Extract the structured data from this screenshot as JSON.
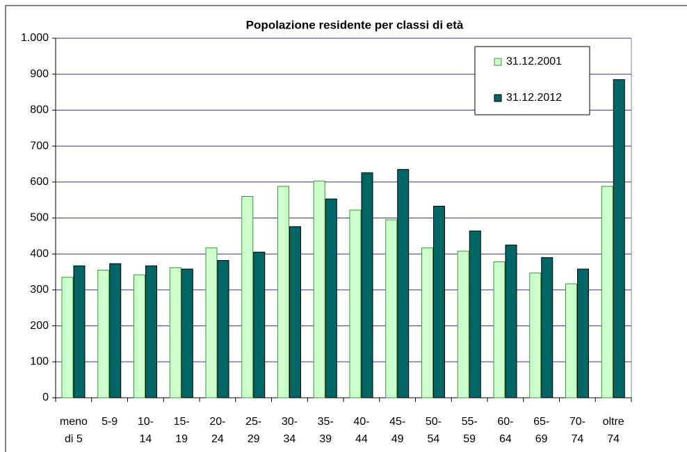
{
  "chart_data": {
    "type": "bar",
    "title": "Popolazione residente per classi di età",
    "categories": [
      "meno\ndi 5",
      "5-9",
      "10-\n14",
      "15-\n19",
      "20-\n24",
      "25-\n29",
      "30-\n34",
      "35-\n39",
      "40-\n44",
      "45-\n49",
      "50-\n54",
      "55-\n59",
      "60-\n64",
      "65-\n69",
      "70-\n74",
      "oltre\n74"
    ],
    "series": [
      {
        "name": "31.12.2001",
        "color": "#ccffcc",
        "edge": "#339933",
        "values": [
          335,
          355,
          342,
          362,
          417,
          560,
          588,
          603,
          522,
          495,
          417,
          408,
          378,
          347,
          317,
          588
        ]
      },
      {
        "name": "31.12.2012",
        "color": "#006666",
        "edge": "#000000",
        "values": [
          367,
          373,
          367,
          358,
          382,
          405,
          476,
          553,
          626,
          635,
          533,
          464,
          425,
          390,
          358,
          885
        ]
      }
    ],
    "ylim": [
      0,
      1000
    ],
    "yticks": [
      0,
      100,
      200,
      300,
      400,
      500,
      600,
      700,
      800,
      900,
      {
        "value": 1000,
        "label": "1.000"
      }
    ],
    "grid": true,
    "legend": "top-right"
  }
}
